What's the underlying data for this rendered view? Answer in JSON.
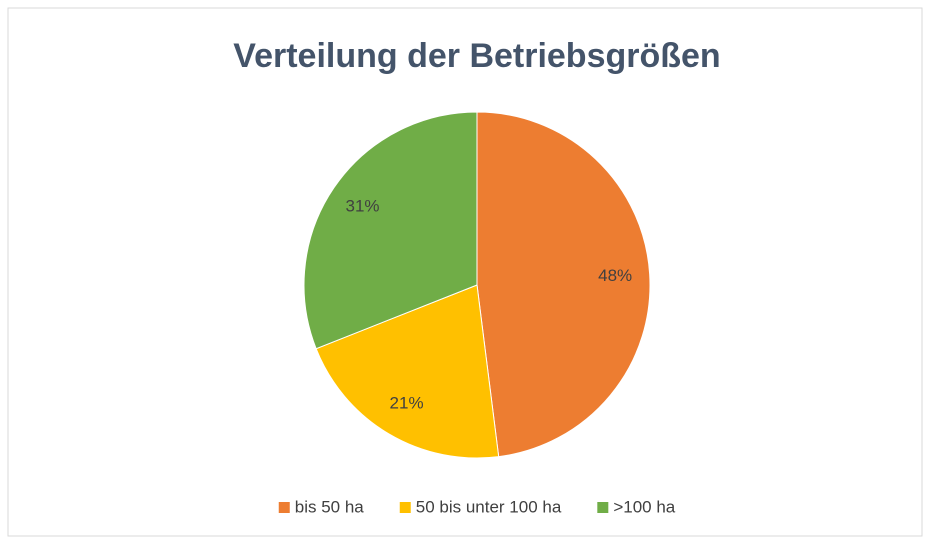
{
  "chart_data": {
    "type": "pie",
    "title": "Verteilung der Betriebsgrößen",
    "categories": [
      "bis 50 ha",
      "50 bis unter 100 ha",
      ">100 ha"
    ],
    "values": [
      48,
      21,
      31
    ],
    "value_labels": [
      "48%",
      "21%",
      "31%"
    ],
    "colors": [
      "#ed7d31",
      "#ffc000",
      "#70ad47"
    ],
    "legend": "bottom"
  }
}
